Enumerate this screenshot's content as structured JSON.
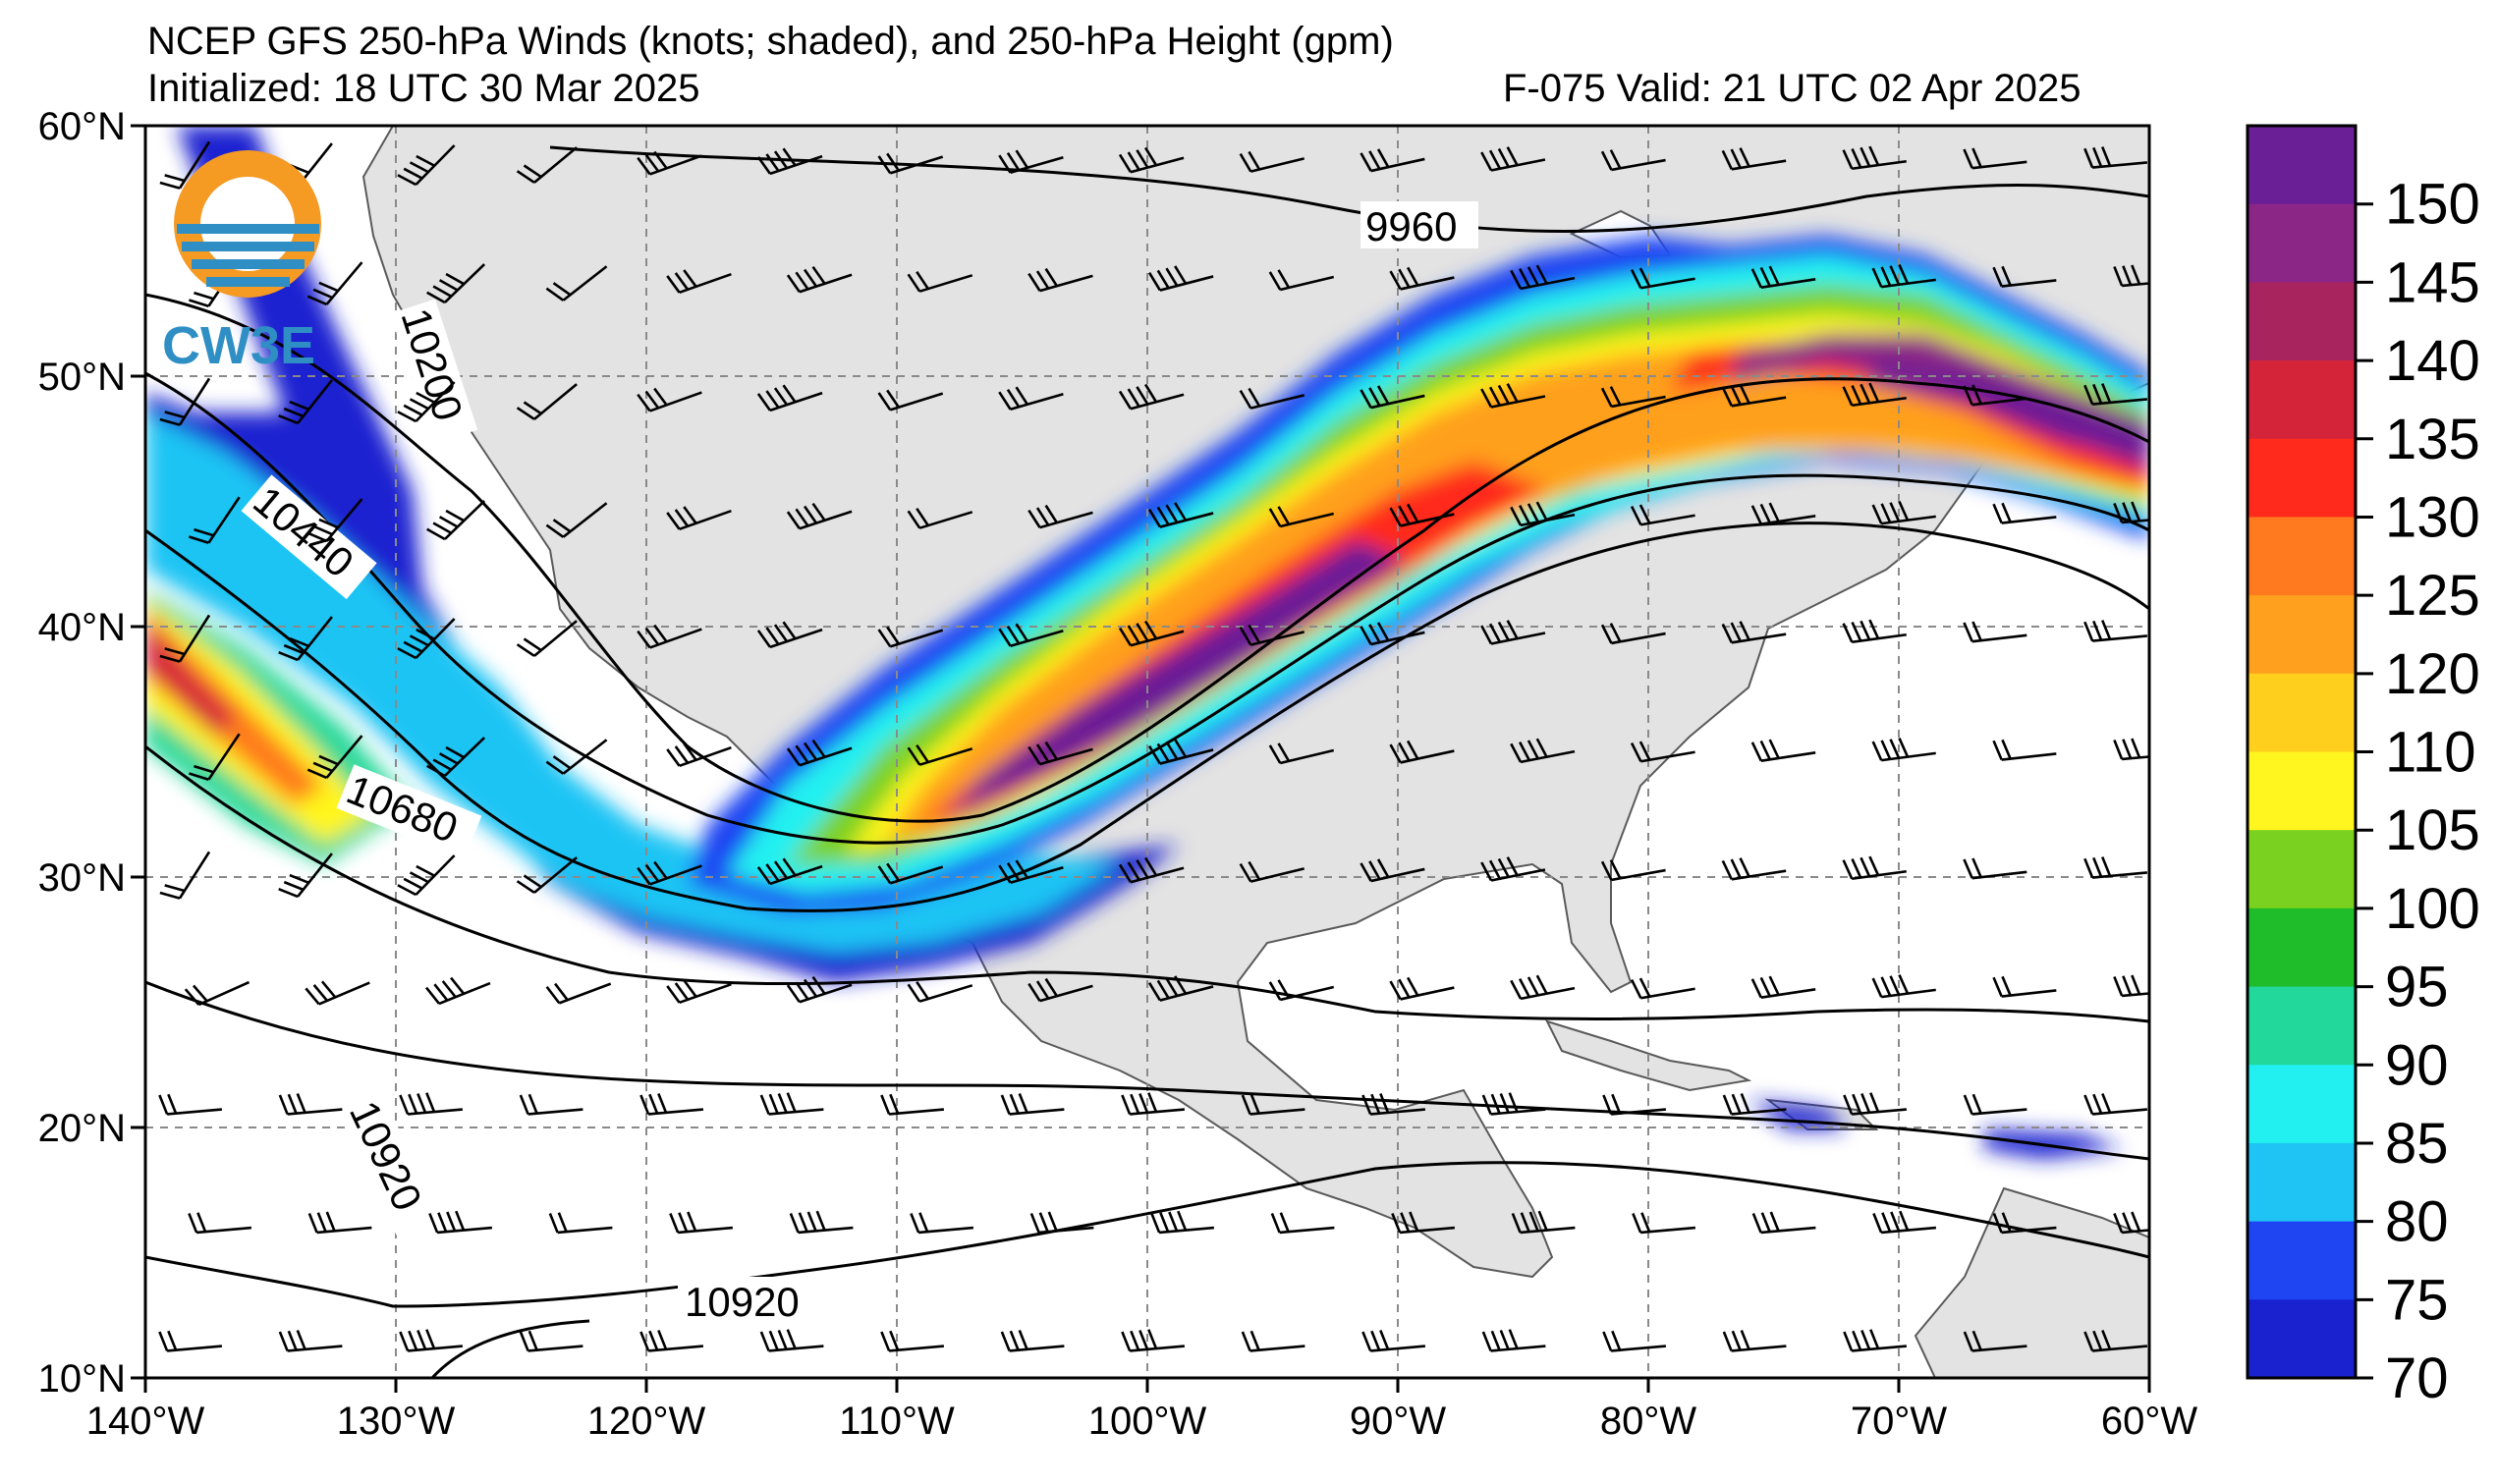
{
  "header": {
    "title": "NCEP GFS 250-hPa Winds (knots; shaded), and 250-hPa Height (gpm)",
    "initialized": "Initialized: 18 UTC 30 Mar 2025",
    "valid": "F-075  Valid: 21 UTC 02 Apr 2025"
  },
  "logo": {
    "text": "CW3E"
  },
  "axes": {
    "lon_labels": [
      "140°W",
      "130°W",
      "120°W",
      "110°W",
      "100°W",
      "90°W",
      "80°W",
      "70°W",
      "60°W"
    ],
    "lat_labels": [
      "60°N",
      "50°N",
      "40°N",
      "30°N",
      "20°N",
      "10°N"
    ]
  },
  "contour_labels": [
    "9960",
    "10200",
    "10440",
    "10680",
    "10920",
    "10920"
  ],
  "colorbar": {
    "levels": [
      "150",
      "145",
      "140",
      "135",
      "130",
      "125",
      "120",
      "110",
      "105",
      "100",
      "95",
      "90",
      "85",
      "80",
      "75",
      "70"
    ],
    "colors": [
      "#6a1f96",
      "#8b2687",
      "#a8245f",
      "#d4243a",
      "#ff2a1c",
      "#ff7a1f",
      "#ffa01e",
      "#ffcf1e",
      "#fff51f",
      "#7ad120",
      "#1fbd2a",
      "#22d89a",
      "#22f0f0",
      "#1fc4f4",
      "#1f45f2",
      "#1a22d0"
    ]
  },
  "map": {
    "lon_range": [
      -140,
      -60
    ],
    "lat_range": [
      10,
      60
    ],
    "land_color": "#e3e3e3",
    "grid": true,
    "field": "250-hPa wind speed (knots) shaded, barbs, and height contours (gpm)"
  }
}
